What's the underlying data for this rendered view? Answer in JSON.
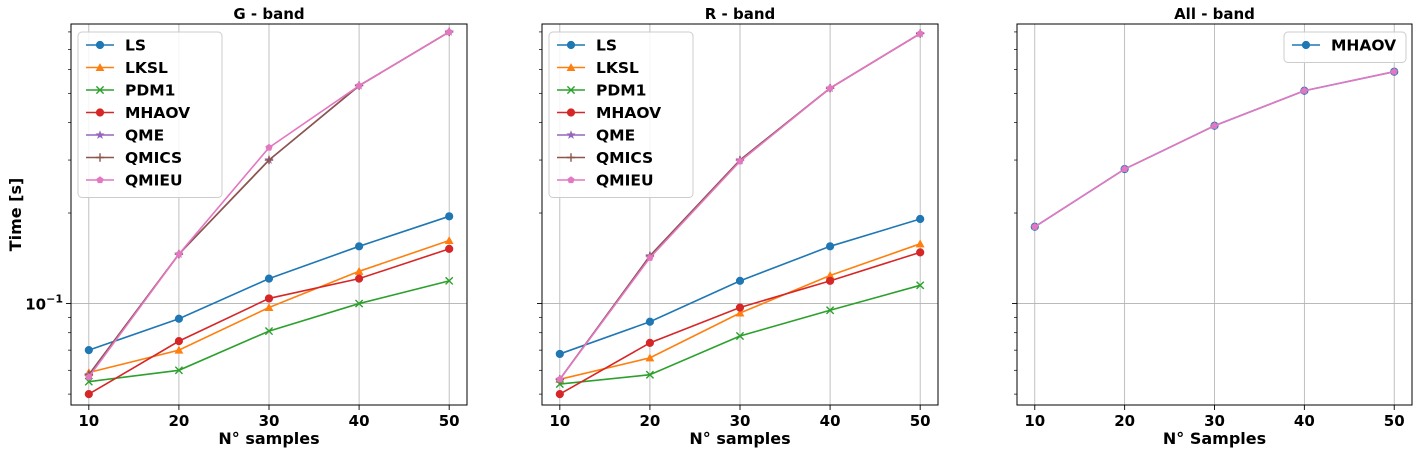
{
  "chart_data": [
    {
      "type": "line",
      "title": "G - band",
      "xlabel": "N° samples",
      "ylabel": "Time [s]",
      "yscale": "log",
      "ylim": [
        0.046,
        0.85
      ],
      "x": [
        10,
        20,
        30,
        40,
        50
      ],
      "grid": true,
      "legend": "upper left",
      "series": [
        {
          "name": "LS",
          "color": "#1f77b4",
          "marker": "circle",
          "values": [
            0.07,
            0.089,
            0.121,
            0.155,
            0.195
          ]
        },
        {
          "name": "LKSL",
          "color": "#ff7f0e",
          "marker": "triangle",
          "values": [
            0.059,
            0.07,
            0.097,
            0.128,
            0.162
          ]
        },
        {
          "name": "PDM1",
          "color": "#2ca02c",
          "marker": "x",
          "values": [
            0.055,
            0.06,
            0.081,
            0.1,
            0.119
          ]
        },
        {
          "name": "MHAOV",
          "color": "#d62728",
          "marker": "circle",
          "values": [
            0.05,
            0.075,
            0.104,
            0.121,
            0.152
          ]
        },
        {
          "name": "QME",
          "color": "#9467bd",
          "marker": "star",
          "values": [
            0.058,
            0.146,
            0.3,
            0.53,
            0.8
          ]
        },
        {
          "name": "QMICS",
          "color": "#8c564b",
          "marker": "plus",
          "values": [
            0.058,
            0.146,
            0.3,
            0.53,
            0.8
          ]
        },
        {
          "name": "QMIEU",
          "color": "#e377c2",
          "marker": "pentagon",
          "values": [
            0.057,
            0.146,
            0.33,
            0.53,
            0.8
          ]
        }
      ]
    },
    {
      "type": "line",
      "title": "R - band",
      "xlabel": "N° samples",
      "ylabel": "",
      "yscale": "log",
      "ylim": [
        0.046,
        0.85
      ],
      "x": [
        10,
        20,
        30,
        40,
        50
      ],
      "grid": true,
      "legend": "upper left",
      "series": [
        {
          "name": "LS",
          "color": "#1f77b4",
          "marker": "circle",
          "values": [
            0.068,
            0.087,
            0.119,
            0.155,
            0.191
          ]
        },
        {
          "name": "LKSL",
          "color": "#ff7f0e",
          "marker": "triangle",
          "values": [
            0.056,
            0.066,
            0.093,
            0.124,
            0.158
          ]
        },
        {
          "name": "PDM1",
          "color": "#2ca02c",
          "marker": "x",
          "values": [
            0.054,
            0.058,
            0.078,
            0.095,
            0.115
          ]
        },
        {
          "name": "MHAOV",
          "color": "#d62728",
          "marker": "circle",
          "values": [
            0.05,
            0.074,
            0.097,
            0.119,
            0.148
          ]
        },
        {
          "name": "QME",
          "color": "#9467bd",
          "marker": "star",
          "values": [
            0.056,
            0.144,
            0.3,
            0.52,
            0.79
          ]
        },
        {
          "name": "QMICS",
          "color": "#8c564b",
          "marker": "plus",
          "values": [
            0.056,
            0.144,
            0.3,
            0.52,
            0.79
          ]
        },
        {
          "name": "QMIEU",
          "color": "#e377c2",
          "marker": "pentagon",
          "values": [
            0.056,
            0.142,
            0.297,
            0.52,
            0.79
          ]
        }
      ]
    },
    {
      "type": "line",
      "title": "All - band",
      "xlabel": "N° Samples",
      "ylabel": "",
      "yscale": "log",
      "ylim": [
        0.046,
        0.85
      ],
      "x": [
        10,
        20,
        30,
        40,
        50
      ],
      "grid": true,
      "legend": "upper right",
      "series": [
        {
          "name": "MHAOV",
          "color": "#1f77b4",
          "marker": "circle",
          "values": [
            0.18,
            0.28,
            0.39,
            0.51,
            0.59
          ]
        },
        {
          "name": "",
          "color": "#e377c2",
          "marker": "pentagon",
          "values": [
            0.18,
            0.28,
            0.39,
            0.51,
            0.59
          ]
        }
      ]
    }
  ]
}
